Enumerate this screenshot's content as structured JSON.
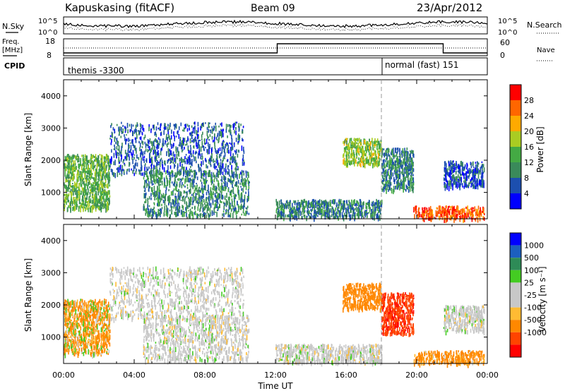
{
  "header": {
    "station": "Kapuskasing (fitACF)",
    "beam": "Beam 09",
    "date": "23/Apr/2012"
  },
  "sky_panel": {
    "left_label": "N.Sky",
    "right_label": "N.Search",
    "left_ticks": [
      "10^5",
      "10^0"
    ],
    "right_ticks": [
      "10^5",
      "10^0"
    ]
  },
  "freq_panel": {
    "left_label_1": "Freq.",
    "left_label_2": "[MHz]",
    "right_label": "Nave",
    "left_ticks": [
      "18",
      "8"
    ],
    "right_ticks": [
      "60",
      "0"
    ]
  },
  "cpid_panel": {
    "label": "CPID",
    "modes": [
      {
        "name": "themis -3300",
        "start_hour": 0
      },
      {
        "name": "normal (fast) 151",
        "start_hour": 18
      }
    ]
  },
  "colors": {
    "power": [
      "#0000ff",
      "#1c4faf",
      "#3a8a5a",
      "#44aa44",
      "#aacc22",
      "#ffaa00",
      "#ff6600",
      "#ff0000"
    ],
    "velocity": [
      "#ff0000",
      "#ff4400",
      "#ff8800",
      "#ffbb33",
      "#c8c8c8",
      "#c8c8c8",
      "#44cc22",
      "#2e8b57",
      "#1c5fbf",
      "#0000ff"
    ],
    "ground_scatter": "#c8c8c8"
  },
  "chart_data": [
    {
      "type": "heatmap",
      "title": "Power",
      "xlabel": "",
      "ylabel": "Slant Range [km]",
      "xlim_hours": [
        0,
        24
      ],
      "ylim_km": [
        180,
        4500
      ],
      "y_ticks": [
        "1000",
        "2000",
        "3000",
        "4000"
      ],
      "colorbar": {
        "label": "Power [dB]",
        "ticks": [
          "4",
          "8",
          "12",
          "16",
          "20",
          "24",
          "28"
        ],
        "range": [
          0,
          30
        ]
      },
      "echo_regions": [
        {
          "t0": 0.0,
          "t1": 2.6,
          "r0": 500,
          "r1": 2200,
          "value": 14
        },
        {
          "t0": 2.6,
          "t1": 10.2,
          "r0": 1600,
          "r1": 3200,
          "value": 7
        },
        {
          "t0": 4.5,
          "t1": 10.5,
          "r0": 300,
          "r1": 1700,
          "value": 10
        },
        {
          "t0": 12.0,
          "t1": 18.0,
          "r0": 250,
          "r1": 800,
          "value": 9
        },
        {
          "t0": 15.8,
          "t1": 18.0,
          "r0": 1900,
          "r1": 2700,
          "value": 16
        },
        {
          "t0": 18.0,
          "t1": 19.8,
          "r0": 1100,
          "r1": 2400,
          "value": 9
        },
        {
          "t0": 19.8,
          "t1": 23.8,
          "r0": 200,
          "r1": 600,
          "value": 27
        },
        {
          "t0": 21.5,
          "t1": 23.8,
          "r0": 1200,
          "r1": 2000,
          "value": 6
        }
      ]
    },
    {
      "type": "heatmap",
      "title": "Velocity",
      "xlabel": "Time UT",
      "ylabel": "Slant Range [km]",
      "xlim_hours": [
        0,
        24
      ],
      "ylim_km": [
        180,
        4500
      ],
      "x_ticks": [
        "00:00",
        "04:00",
        "08:00",
        "12:00",
        "16:00",
        "20:00",
        "00:00"
      ],
      "y_ticks": [
        "1000",
        "2000",
        "3000",
        "4000"
      ],
      "colorbar": {
        "label": "Velocity [m s⁻¹]",
        "ticks": [
          "1000",
          "500",
          "100",
          "25",
          "-25",
          "-100",
          "-500",
          "-1000"
        ]
      },
      "echo_regions": [
        {
          "t0": 0.0,
          "t1": 2.6,
          "r0": 500,
          "r1": 2200,
          "value": -120
        },
        {
          "t0": 2.6,
          "t1": 10.2,
          "r0": 1600,
          "r1": 3200,
          "value": 0
        },
        {
          "t0": 4.5,
          "t1": 10.5,
          "r0": 300,
          "r1": 1700,
          "value": 0
        },
        {
          "t0": 12.0,
          "t1": 18.0,
          "r0": 250,
          "r1": 800,
          "value": 0
        },
        {
          "t0": 15.8,
          "t1": 18.0,
          "r0": 1900,
          "r1": 2700,
          "value": -300
        },
        {
          "t0": 18.0,
          "t1": 19.8,
          "r0": 1100,
          "r1": 2400,
          "value": -900
        },
        {
          "t0": 19.8,
          "t1": 23.8,
          "r0": 200,
          "r1": 600,
          "value": -200
        },
        {
          "t0": 21.5,
          "t1": 23.8,
          "r0": 1200,
          "r1": 2000,
          "value": 0
        }
      ]
    }
  ]
}
